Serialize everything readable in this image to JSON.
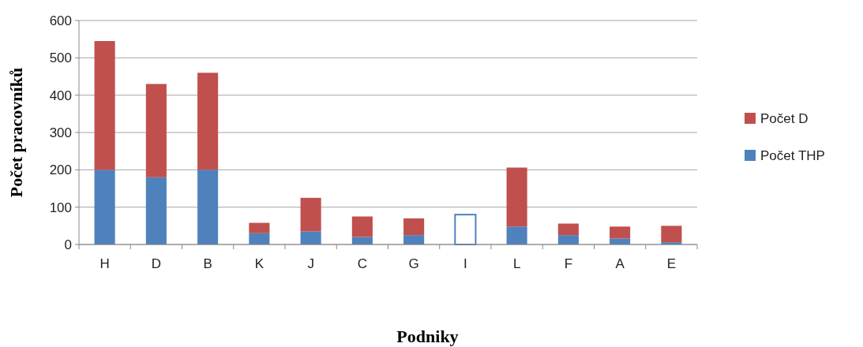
{
  "chart_data": {
    "type": "bar",
    "stacked": true,
    "xlabel": "Podniky",
    "ylabel": "Počet pracovníků",
    "categories": [
      "H",
      "D",
      "B",
      "K",
      "J",
      "C",
      "G",
      "I",
      "L",
      "F",
      "A",
      "E"
    ],
    "series": [
      {
        "name": "Počet THP",
        "color": "#4f81bd",
        "colors": [
          "#4f81bd",
          "#4f81bd",
          "#4f81bd",
          "#4f81bd",
          "#4f81bd",
          "#4f81bd",
          "#4f81bd",
          "#ffffff",
          "#4f81bd",
          "#4f81bd",
          "#4f81bd",
          "#4f81bd"
        ],
        "values": [
          200,
          180,
          200,
          30,
          35,
          20,
          25,
          80,
          48,
          25,
          16,
          6
        ]
      },
      {
        "name": "Počet D",
        "color": "#c0504d",
        "values": [
          345,
          250,
          260,
          28,
          90,
          55,
          45,
          0,
          158,
          31,
          32,
          44
        ]
      }
    ],
    "ylim": [
      0,
      600
    ],
    "yticks": [
      0,
      100,
      200,
      300,
      400,
      500,
      600
    ],
    "grid": "y",
    "legend": "right"
  }
}
